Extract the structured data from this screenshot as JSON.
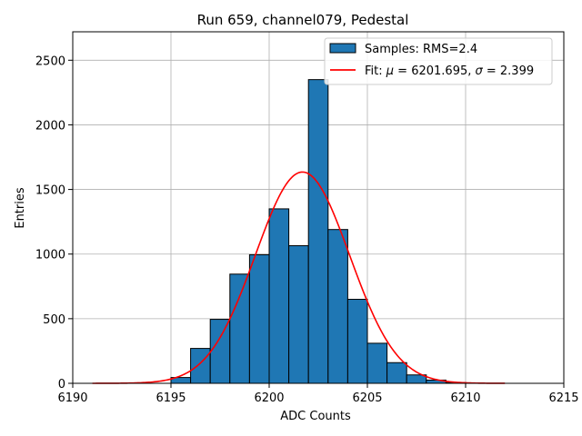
{
  "chart_data": {
    "type": "bar",
    "title": "Run 659, channel079, Pedestal",
    "xlabel": "ADC Counts",
    "ylabel": "Entries",
    "xlim": [
      6190,
      6215
    ],
    "ylim": [
      0,
      2720
    ],
    "xticks": [
      6190,
      6195,
      6200,
      6205,
      6210,
      6215
    ],
    "yticks": [
      0,
      500,
      1000,
      1500,
      2000,
      2500
    ],
    "grid": true,
    "bin_width": 1,
    "bins": [
      {
        "left": 6195,
        "count": 45
      },
      {
        "left": 6196,
        "count": 270
      },
      {
        "left": 6197,
        "count": 495
      },
      {
        "left": 6198,
        "count": 845
      },
      {
        "left": 6199,
        "count": 995
      },
      {
        "left": 6200,
        "count": 1350
      },
      {
        "left": 6201,
        "count": 1065
      },
      {
        "left": 6202,
        "count": 2350
      },
      {
        "left": 6203,
        "count": 1190
      },
      {
        "left": 6204,
        "count": 650
      },
      {
        "left": 6205,
        "count": 310
      },
      {
        "left": 6206,
        "count": 160
      },
      {
        "left": 6207,
        "count": 65
      },
      {
        "left": 6208,
        "count": 25
      },
      {
        "left": 6209,
        "count": 6
      }
    ],
    "fit": {
      "mu": 6201.695,
      "sigma": 2.399,
      "amplitude": 1635,
      "x_range": [
        6191,
        6212
      ]
    },
    "series": [
      {
        "name": "Samples",
        "legend_label": "Samples: RMS=2.4",
        "color": "#1f77b4",
        "edge_color": "#000000"
      },
      {
        "name": "Fit",
        "legend_prefix": "Fit: ",
        "mu_symbol": "μ",
        "mu_text": " = 6201.695, ",
        "sigma_symbol": "σ",
        "sigma_text": " = 2.399",
        "color": "#ff0000"
      }
    ],
    "legend_position": "top-right"
  }
}
